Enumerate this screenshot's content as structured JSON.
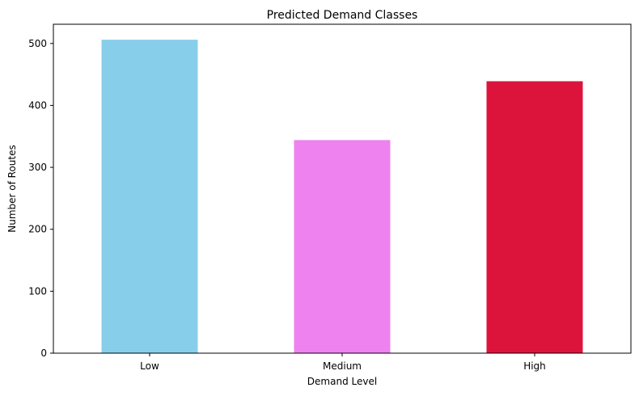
{
  "chart_data": {
    "type": "bar",
    "title": "Predicted Demand Classes",
    "xlabel": "Demand Level",
    "ylabel": "Number of Routes",
    "categories": [
      "Low",
      "Medium",
      "High"
    ],
    "values": [
      506,
      344,
      439
    ],
    "colors": [
      "#87ceeb",
      "#ee82ee",
      "#dc143c"
    ],
    "ylim": [
      0,
      531
    ],
    "yticks": [
      0,
      100,
      200,
      300,
      400,
      500
    ],
    "grid": false,
    "legend": false
  }
}
